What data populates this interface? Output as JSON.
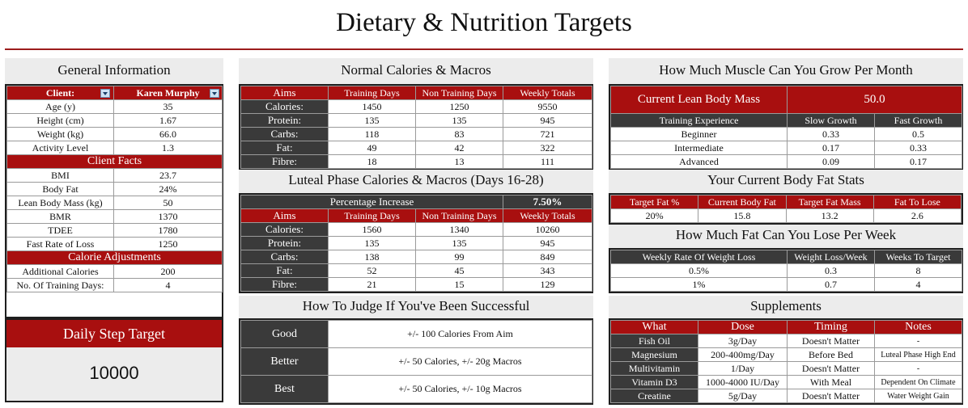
{
  "page_title": "Dietary & Nutrition Targets",
  "general": {
    "heading": "General Information",
    "client_label": "Client:",
    "client_name": "Karen Murphy",
    "rows": [
      {
        "label": "Age (y)",
        "value": "35"
      },
      {
        "label": "Height (cm)",
        "value": "1.67"
      },
      {
        "label": "Weight (kg)",
        "value": "66.0"
      },
      {
        "label": "Activity Level",
        "value": "1.3"
      }
    ],
    "facts_heading": "Client Facts",
    "facts": [
      {
        "label": "BMI",
        "value": "23.7"
      },
      {
        "label": "Body Fat",
        "value": "24%"
      },
      {
        "label": "Lean Body Mass (kg)",
        "value": "50"
      },
      {
        "label": "BMR",
        "value": "1370"
      },
      {
        "label": "TDEE",
        "value": "1780"
      },
      {
        "label": "Fast Rate of Loss",
        "value": "1250"
      }
    ],
    "adjust_heading": "Calorie Adjustments",
    "adjustments": [
      {
        "label": "Additional Calories",
        "value": "200"
      },
      {
        "label": "No. Of Training Days:",
        "value": "4"
      }
    ]
  },
  "steps": {
    "heading": "Daily Step Target",
    "value": "10000"
  },
  "normal": {
    "heading": "Normal Calories & Macros",
    "columns": [
      "Aims",
      "Training Days",
      "Non Training Days",
      "Weekly Totals"
    ],
    "rows": [
      {
        "label": "Calories:",
        "values": [
          "1450",
          "1250",
          "9550"
        ]
      },
      {
        "label": "Protein:",
        "values": [
          "135",
          "135",
          "945"
        ]
      },
      {
        "label": "Carbs:",
        "values": [
          "118",
          "83",
          "721"
        ]
      },
      {
        "label": "Fat:",
        "values": [
          "49",
          "42",
          "322"
        ]
      },
      {
        "label": "Fibre:",
        "values": [
          "18",
          "13",
          "111"
        ]
      }
    ]
  },
  "luteal": {
    "heading": "Luteal Phase Calories & Macros (Days 16-28)",
    "pct_label": "Percentage Increase",
    "pct_value": "7.50%",
    "columns": [
      "Aims",
      "Training Days",
      "Non Training Days",
      "Weekly Totals"
    ],
    "rows": [
      {
        "label": "Calories:",
        "values": [
          "1560",
          "1340",
          "10260"
        ]
      },
      {
        "label": "Protein:",
        "values": [
          "135",
          "135",
          "945"
        ]
      },
      {
        "label": "Carbs:",
        "values": [
          "138",
          "99",
          "849"
        ]
      },
      {
        "label": "Fat:",
        "values": [
          "52",
          "45",
          "343"
        ]
      },
      {
        "label": "Fibre:",
        "values": [
          "21",
          "15",
          "129"
        ]
      }
    ]
  },
  "judge": {
    "heading": "How To Judge If You've Been Successful",
    "rows": [
      {
        "label": "Good",
        "text": "+/- 100 Calories From Aim"
      },
      {
        "label": "Better",
        "text": "+/- 50 Calories, +/- 20g Macros"
      },
      {
        "label": "Best",
        "text": "+/- 50 Calories, +/- 10g Macros"
      }
    ]
  },
  "muscle": {
    "heading": "How Much Muscle Can You Grow Per Month",
    "lbm_label": "Current Lean Body Mass",
    "lbm_value": "50.0",
    "columns": [
      "Training Experience",
      "Slow Growth",
      "Fast Growth"
    ],
    "rows": [
      {
        "label": "Beginner",
        "values": [
          "0.33",
          "0.5"
        ]
      },
      {
        "label": "Intermediate",
        "values": [
          "0.17",
          "0.33"
        ]
      },
      {
        "label": "Advanced",
        "values": [
          "0.09",
          "0.17"
        ]
      }
    ]
  },
  "bodyfat": {
    "heading": "Your Current Body Fat Stats",
    "columns": [
      "Target Fat %",
      "Current Body Fat",
      "Target Fat Mass",
      "Fat To Lose"
    ],
    "values": [
      "20%",
      "15.8",
      "13.2",
      "2.6"
    ]
  },
  "fatloss": {
    "heading": "How Much Fat Can You Lose Per Week",
    "columns": [
      "Weekly Rate Of Weight Loss",
      "Weight Loss/Week",
      "Weeks To Target"
    ],
    "rows": [
      {
        "values": [
          "0.5%",
          "0.3",
          "8"
        ]
      },
      {
        "values": [
          "1%",
          "0.7",
          "4"
        ]
      }
    ]
  },
  "supplements": {
    "heading": "Supplements",
    "columns": [
      "What",
      "Dose",
      "Timing",
      "Notes"
    ],
    "rows": [
      {
        "values": [
          "Fish Oil",
          "3g/Day",
          "Doesn't Matter",
          "-"
        ]
      },
      {
        "values": [
          "Magnesium",
          "200-400mg/Day",
          "Before Bed",
          "Luteal Phase High End"
        ]
      },
      {
        "values": [
          "Multivitamin",
          "1/Day",
          "Doesn't Matter",
          "-"
        ]
      },
      {
        "values": [
          "Vitamin D3",
          "1000-4000 IU/Day",
          "With Meal",
          "Dependent On Climate"
        ]
      },
      {
        "values": [
          "Creatine",
          "5g/Day",
          "Doesn't Matter",
          "Water Weight Gain"
        ]
      }
    ]
  },
  "colors": {
    "accent_red": "#a80f0f",
    "dark_label": "#3a3a3a",
    "panel_grey": "#ececec"
  }
}
